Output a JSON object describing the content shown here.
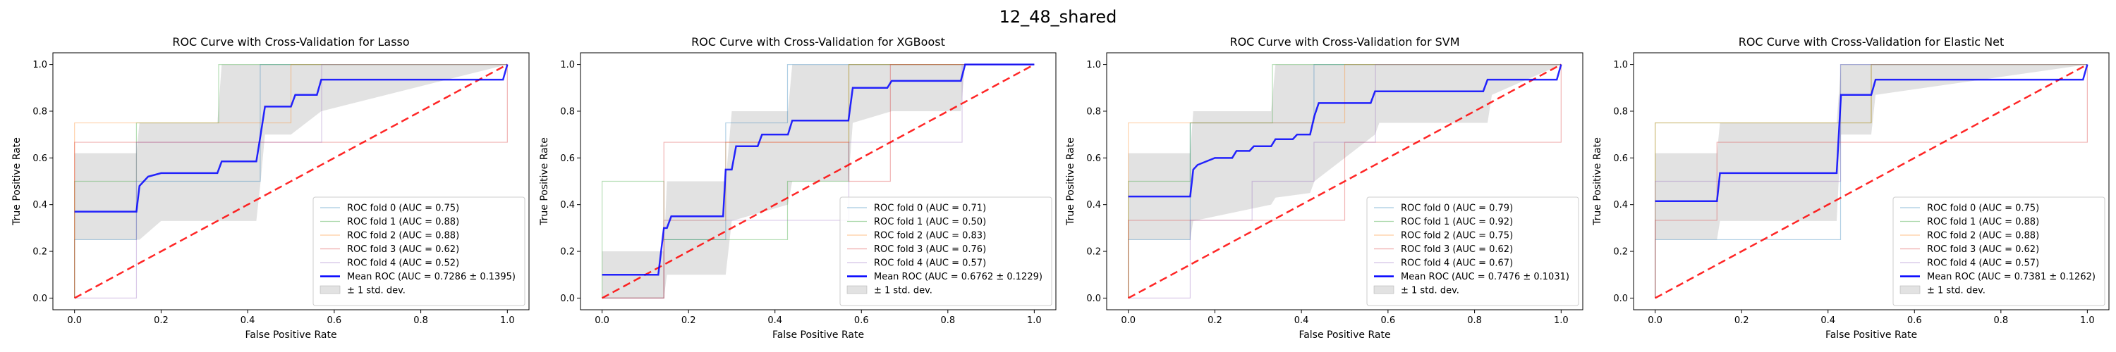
{
  "suptitle": "12_48_shared",
  "colors": {
    "folds": [
      "#1f77b4",
      "#2ca02c",
      "#ff7f0e",
      "#d62728",
      "#9467bd"
    ],
    "mean": "#0000ff",
    "chance": "#ff0000",
    "band": "#bfbfbf"
  },
  "chart_data": [
    {
      "type": "line",
      "title": "ROC Curve with Cross-Validation for Lasso",
      "xlabel": "False Positive Rate",
      "ylabel": "True Positive Rate",
      "xlim": [
        -0.05,
        1.05
      ],
      "ylim": [
        -0.05,
        1.05
      ],
      "xticks": [
        "0.0",
        "0.2",
        "0.4",
        "0.6",
        "0.8",
        "1.0"
      ],
      "yticks": [
        "0.0",
        "0.2",
        "0.4",
        "0.6",
        "0.8",
        "1.0"
      ],
      "legend_position": "lower right",
      "chance_line": {
        "x": [
          0,
          1
        ],
        "y": [
          0,
          1
        ]
      },
      "folds": [
        {
          "name": "ROC fold 0 (AUC = 0.75)",
          "x": [
            0,
            0,
            0.143,
            0.143,
            0.429,
            0.429,
            1
          ],
          "y": [
            0,
            0.25,
            0.25,
            0.5,
            0.5,
            1,
            1
          ]
        },
        {
          "name": "ROC fold 1 (AUC = 0.88)",
          "x": [
            0,
            0,
            0.143,
            0.143,
            0.333,
            0.333,
            1
          ],
          "y": [
            0,
            0.5,
            0.5,
            0.75,
            0.75,
            1,
            1
          ]
        },
        {
          "name": "ROC fold 2 (AUC = 0.88)",
          "x": [
            0,
            0,
            0.429,
            0.429,
            0.5,
            0.5,
            1
          ],
          "y": [
            0,
            0.75,
            0.75,
            0.75,
            0.75,
            1,
            1
          ]
        },
        {
          "name": "ROC fold 3 (AUC = 0.62)",
          "x": [
            0,
            0,
            0.5,
            0.5,
            1,
            1
          ],
          "y": [
            0,
            0.667,
            0.667,
            0.667,
            0.667,
            1
          ]
        },
        {
          "name": "ROC fold 4 (AUC = 0.52)",
          "x": [
            0,
            0,
            0.143,
            0.143,
            0.571,
            0.571,
            1
          ],
          "y": [
            0,
            0,
            0,
            0.667,
            0.667,
            1,
            1
          ]
        }
      ],
      "mean": {
        "name": "Mean ROC (AUC = 0.7286 ± 0.1395)",
        "x": [
          0,
          0.143,
          0.15,
          0.16,
          0.17,
          0.2,
          0.25,
          0.3,
          0.33,
          0.34,
          0.42,
          0.43,
          0.44,
          0.5,
          0.51,
          0.56,
          0.57,
          0.99,
          1.0
        ],
        "y": [
          0.37,
          0.37,
          0.48,
          0.5,
          0.52,
          0.535,
          0.535,
          0.535,
          0.535,
          0.585,
          0.585,
          0.7,
          0.82,
          0.82,
          0.87,
          0.87,
          0.935,
          0.935,
          1.0
        ]
      },
      "band": {
        "name": "± 1 std. dev.",
        "x": [
          0,
          0.143,
          0.15,
          0.2,
          0.33,
          0.34,
          0.42,
          0.43,
          0.44,
          0.5,
          0.57,
          1.0
        ],
        "upper": [
          0.62,
          0.62,
          0.75,
          0.75,
          0.75,
          1.0,
          1.0,
          1.0,
          1.0,
          1.0,
          1.0,
          1.0
        ],
        "lower": [
          0.25,
          0.25,
          0.25,
          0.33,
          0.33,
          0.33,
          0.33,
          0.5,
          0.7,
          0.7,
          0.8,
          1.0
        ]
      }
    },
    {
      "type": "line",
      "title": "ROC Curve with Cross-Validation for XGBoost",
      "xlabel": "False Positive Rate",
      "ylabel": "True Positive Rate",
      "xlim": [
        -0.05,
        1.05
      ],
      "ylim": [
        -0.05,
        1.05
      ],
      "xticks": [
        "0.0",
        "0.2",
        "0.4",
        "0.6",
        "0.8",
        "1.0"
      ],
      "yticks": [
        "0.0",
        "0.2",
        "0.4",
        "0.6",
        "0.8",
        "1.0"
      ],
      "legend_position": "lower right",
      "chance_line": {
        "x": [
          0,
          1
        ],
        "y": [
          0,
          1
        ]
      },
      "folds": [
        {
          "name": "ROC fold 0 (AUC = 0.71)",
          "x": [
            0,
            0,
            0.143,
            0.143,
            0.286,
            0.286,
            0.429,
            0.429,
            1
          ],
          "y": [
            0,
            0,
            0,
            0.25,
            0.25,
            0.75,
            0.75,
            1,
            1
          ]
        },
        {
          "name": "ROC fold 1 (AUC = 0.50)",
          "x": [
            0,
            0,
            0.143,
            0.143,
            0.429,
            0.429,
            0.571,
            0.571,
            1
          ],
          "y": [
            0,
            0.5,
            0.5,
            0.25,
            0.25,
            0.5,
            0.5,
            1,
            1
          ]
        },
        {
          "name": "ROC fold 2 (AUC = 0.83)",
          "x": [
            0,
            0,
            0.143,
            0.143,
            0.286,
            0.286,
            0.429,
            0.429,
            0.571,
            0.571,
            1
          ],
          "y": [
            0,
            0,
            0,
            0.333,
            0.333,
            0.667,
            0.667,
            0.667,
            0.667,
            1,
            1
          ]
        },
        {
          "name": "ROC fold 3 (AUC = 0.76)",
          "x": [
            0,
            0,
            0.143,
            0.143,
            0.286,
            0.286,
            0.571,
            0.571,
            0.667,
            0.667,
            1
          ],
          "y": [
            0,
            0,
            0,
            0.667,
            0.667,
            0.667,
            0.667,
            0.5,
            0.5,
            1,
            1
          ]
        },
        {
          "name": "ROC fold 4 (AUC = 0.57)",
          "x": [
            0,
            0,
            0.143,
            0.143,
            0.571,
            0.571,
            0.833,
            0.833,
            1
          ],
          "y": [
            0,
            0,
            0,
            0.333,
            0.333,
            0.667,
            0.667,
            1,
            1
          ]
        }
      ],
      "mean": {
        "name": "Mean ROC (AUC = 0.6762 ± 0.1229)",
        "x": [
          0,
          0.13,
          0.143,
          0.15,
          0.16,
          0.2,
          0.28,
          0.286,
          0.3,
          0.31,
          0.36,
          0.37,
          0.43,
          0.44,
          0.57,
          0.58,
          0.66,
          0.67,
          0.83,
          0.84,
          1.0
        ],
        "y": [
          0.1,
          0.1,
          0.3,
          0.3,
          0.35,
          0.35,
          0.35,
          0.55,
          0.55,
          0.65,
          0.65,
          0.7,
          0.7,
          0.76,
          0.76,
          0.9,
          0.9,
          0.93,
          0.93,
          1.0,
          1.0
        ]
      },
      "band": {
        "name": "± 1 std. dev.",
        "x": [
          0,
          0.143,
          0.15,
          0.286,
          0.3,
          0.43,
          0.44,
          0.57,
          0.58,
          0.67,
          0.83,
          0.84,
          1.0
        ],
        "upper": [
          0.2,
          0.2,
          0.5,
          0.5,
          0.8,
          0.8,
          1.0,
          1.0,
          1.0,
          1.0,
          1.0,
          1.0,
          1.0
        ],
        "lower": [
          0.0,
          0.0,
          0.1,
          0.1,
          0.33,
          0.4,
          0.5,
          0.5,
          0.75,
          0.8,
          0.8,
          1.0,
          1.0
        ]
      }
    },
    {
      "type": "line",
      "title": "ROC Curve with Cross-Validation for SVM",
      "xlabel": "False Positive Rate",
      "ylabel": "True Positive Rate",
      "xlim": [
        -0.05,
        1.05
      ],
      "ylim": [
        -0.05,
        1.05
      ],
      "xticks": [
        "0.0",
        "0.2",
        "0.4",
        "0.6",
        "0.8",
        "1.0"
      ],
      "yticks": [
        "0.0",
        "0.2",
        "0.4",
        "0.6",
        "0.8",
        "1.0"
      ],
      "legend_position": "lower right",
      "chance_line": {
        "x": [
          0,
          1
        ],
        "y": [
          0,
          1
        ]
      },
      "folds": [
        {
          "name": "ROC fold 0 (AUC = 0.79)",
          "x": [
            0,
            0,
            0.143,
            0.143,
            0.429,
            0.429,
            1
          ],
          "y": [
            0,
            0.25,
            0.25,
            0.75,
            0.75,
            1,
            1
          ]
        },
        {
          "name": "ROC fold 1 (AUC = 0.92)",
          "x": [
            0,
            0,
            0.143,
            0.143,
            0.333,
            0.333,
            1
          ],
          "y": [
            0,
            0.5,
            0.5,
            0.75,
            0.75,
            1,
            1
          ]
        },
        {
          "name": "ROC fold 2 (AUC = 0.75)",
          "x": [
            0,
            0,
            0.333,
            0.333,
            0.5,
            0.5,
            1
          ],
          "y": [
            0,
            0.75,
            0.75,
            0.75,
            0.75,
            1,
            1
          ]
        },
        {
          "name": "ROC fold 3 (AUC = 0.62)",
          "x": [
            0,
            0,
            0.5,
            0.5,
            1,
            1
          ],
          "y": [
            0,
            0.333,
            0.333,
            0.667,
            0.667,
            1
          ]
        },
        {
          "name": "ROC fold 4 (AUC = 0.67)",
          "x": [
            0,
            0,
            0.143,
            0.143,
            0.286,
            0.286,
            0.429,
            0.429,
            0.571,
            0.571,
            1
          ],
          "y": [
            0,
            0,
            0,
            0.333,
            0.333,
            0.5,
            0.5,
            0.667,
            0.667,
            1,
            1
          ]
        }
      ],
      "mean": {
        "name": "Mean ROC (AUC = 0.7476 ± 0.1031)",
        "x": [
          0,
          0.143,
          0.15,
          0.16,
          0.2,
          0.24,
          0.25,
          0.28,
          0.29,
          0.33,
          0.34,
          0.38,
          0.39,
          0.42,
          0.43,
          0.44,
          0.56,
          0.57,
          0.82,
          0.83,
          0.99,
          1.0
        ],
        "y": [
          0.435,
          0.435,
          0.55,
          0.57,
          0.6,
          0.6,
          0.63,
          0.63,
          0.65,
          0.65,
          0.68,
          0.68,
          0.7,
          0.7,
          0.78,
          0.835,
          0.835,
          0.885,
          0.885,
          0.935,
          0.935,
          1.0
        ]
      },
      "band": {
        "name": "± 1 std. dev.",
        "x": [
          0,
          0.143,
          0.15,
          0.33,
          0.34,
          0.42,
          0.43,
          0.57,
          0.58,
          0.83,
          0.84,
          1.0
        ],
        "upper": [
          0.62,
          0.62,
          0.8,
          0.8,
          1.0,
          1.0,
          1.0,
          1.0,
          1.0,
          1.0,
          1.0,
          1.0
        ],
        "lower": [
          0.25,
          0.25,
          0.33,
          0.4,
          0.43,
          0.45,
          0.5,
          0.7,
          0.75,
          0.75,
          0.87,
          1.0
        ]
      }
    },
    {
      "type": "line",
      "title": "ROC Curve with Cross-Validation for Elastic Net",
      "xlabel": "False Positive Rate",
      "ylabel": "True Positive Rate",
      "xlim": [
        -0.05,
        1.05
      ],
      "ylim": [
        -0.05,
        1.05
      ],
      "xticks": [
        "0.0",
        "0.2",
        "0.4",
        "0.6",
        "0.8",
        "1.0"
      ],
      "yticks": [
        "0.0",
        "0.2",
        "0.4",
        "0.6",
        "0.8",
        "1.0"
      ],
      "legend_position": "lower right",
      "chance_line": {
        "x": [
          0,
          1
        ],
        "y": [
          0,
          1
        ]
      },
      "folds": [
        {
          "name": "ROC fold 0 (AUC = 0.75)",
          "x": [
            0,
            0,
            0.429,
            0.429,
            1
          ],
          "y": [
            0,
            0.25,
            0.25,
            1,
            1
          ]
        },
        {
          "name": "ROC fold 1 (AUC = 0.88)",
          "x": [
            0,
            0,
            0.5,
            0.5,
            1
          ],
          "y": [
            0,
            0.75,
            0.75,
            1,
            1
          ]
        },
        {
          "name": "ROC fold 2 (AUC = 0.88)",
          "x": [
            0,
            0,
            0.5,
            0.5,
            1
          ],
          "y": [
            0,
            0.75,
            0.75,
            1,
            1
          ]
        },
        {
          "name": "ROC fold 3 (AUC = 0.62)",
          "x": [
            0,
            0,
            0.143,
            0.143,
            1,
            1
          ],
          "y": [
            0,
            0.333,
            0.333,
            0.667,
            0.667,
            1
          ]
        },
        {
          "name": "ROC fold 4 (AUC = 0.57)",
          "x": [
            0,
            0,
            0.429,
            0.429,
            1
          ],
          "y": [
            0,
            0.5,
            0.5,
            1,
            1
          ]
        }
      ],
      "mean": {
        "name": "Mean ROC (AUC = 0.7381 ± 0.1262)",
        "x": [
          0,
          0.143,
          0.15,
          0.42,
          0.43,
          0.5,
          0.51,
          0.99,
          1.0
        ],
        "y": [
          0.415,
          0.415,
          0.535,
          0.535,
          0.87,
          0.87,
          0.935,
          0.935,
          1.0
        ]
      },
      "band": {
        "name": "± 1 std. dev.",
        "x": [
          0,
          0.143,
          0.15,
          0.42,
          0.43,
          0.5,
          0.51,
          1.0
        ],
        "upper": [
          0.62,
          0.62,
          0.75,
          0.75,
          1.0,
          1.0,
          1.0,
          1.0
        ],
        "lower": [
          0.25,
          0.25,
          0.33,
          0.33,
          0.7,
          0.7,
          0.87,
          1.0
        ]
      }
    }
  ]
}
